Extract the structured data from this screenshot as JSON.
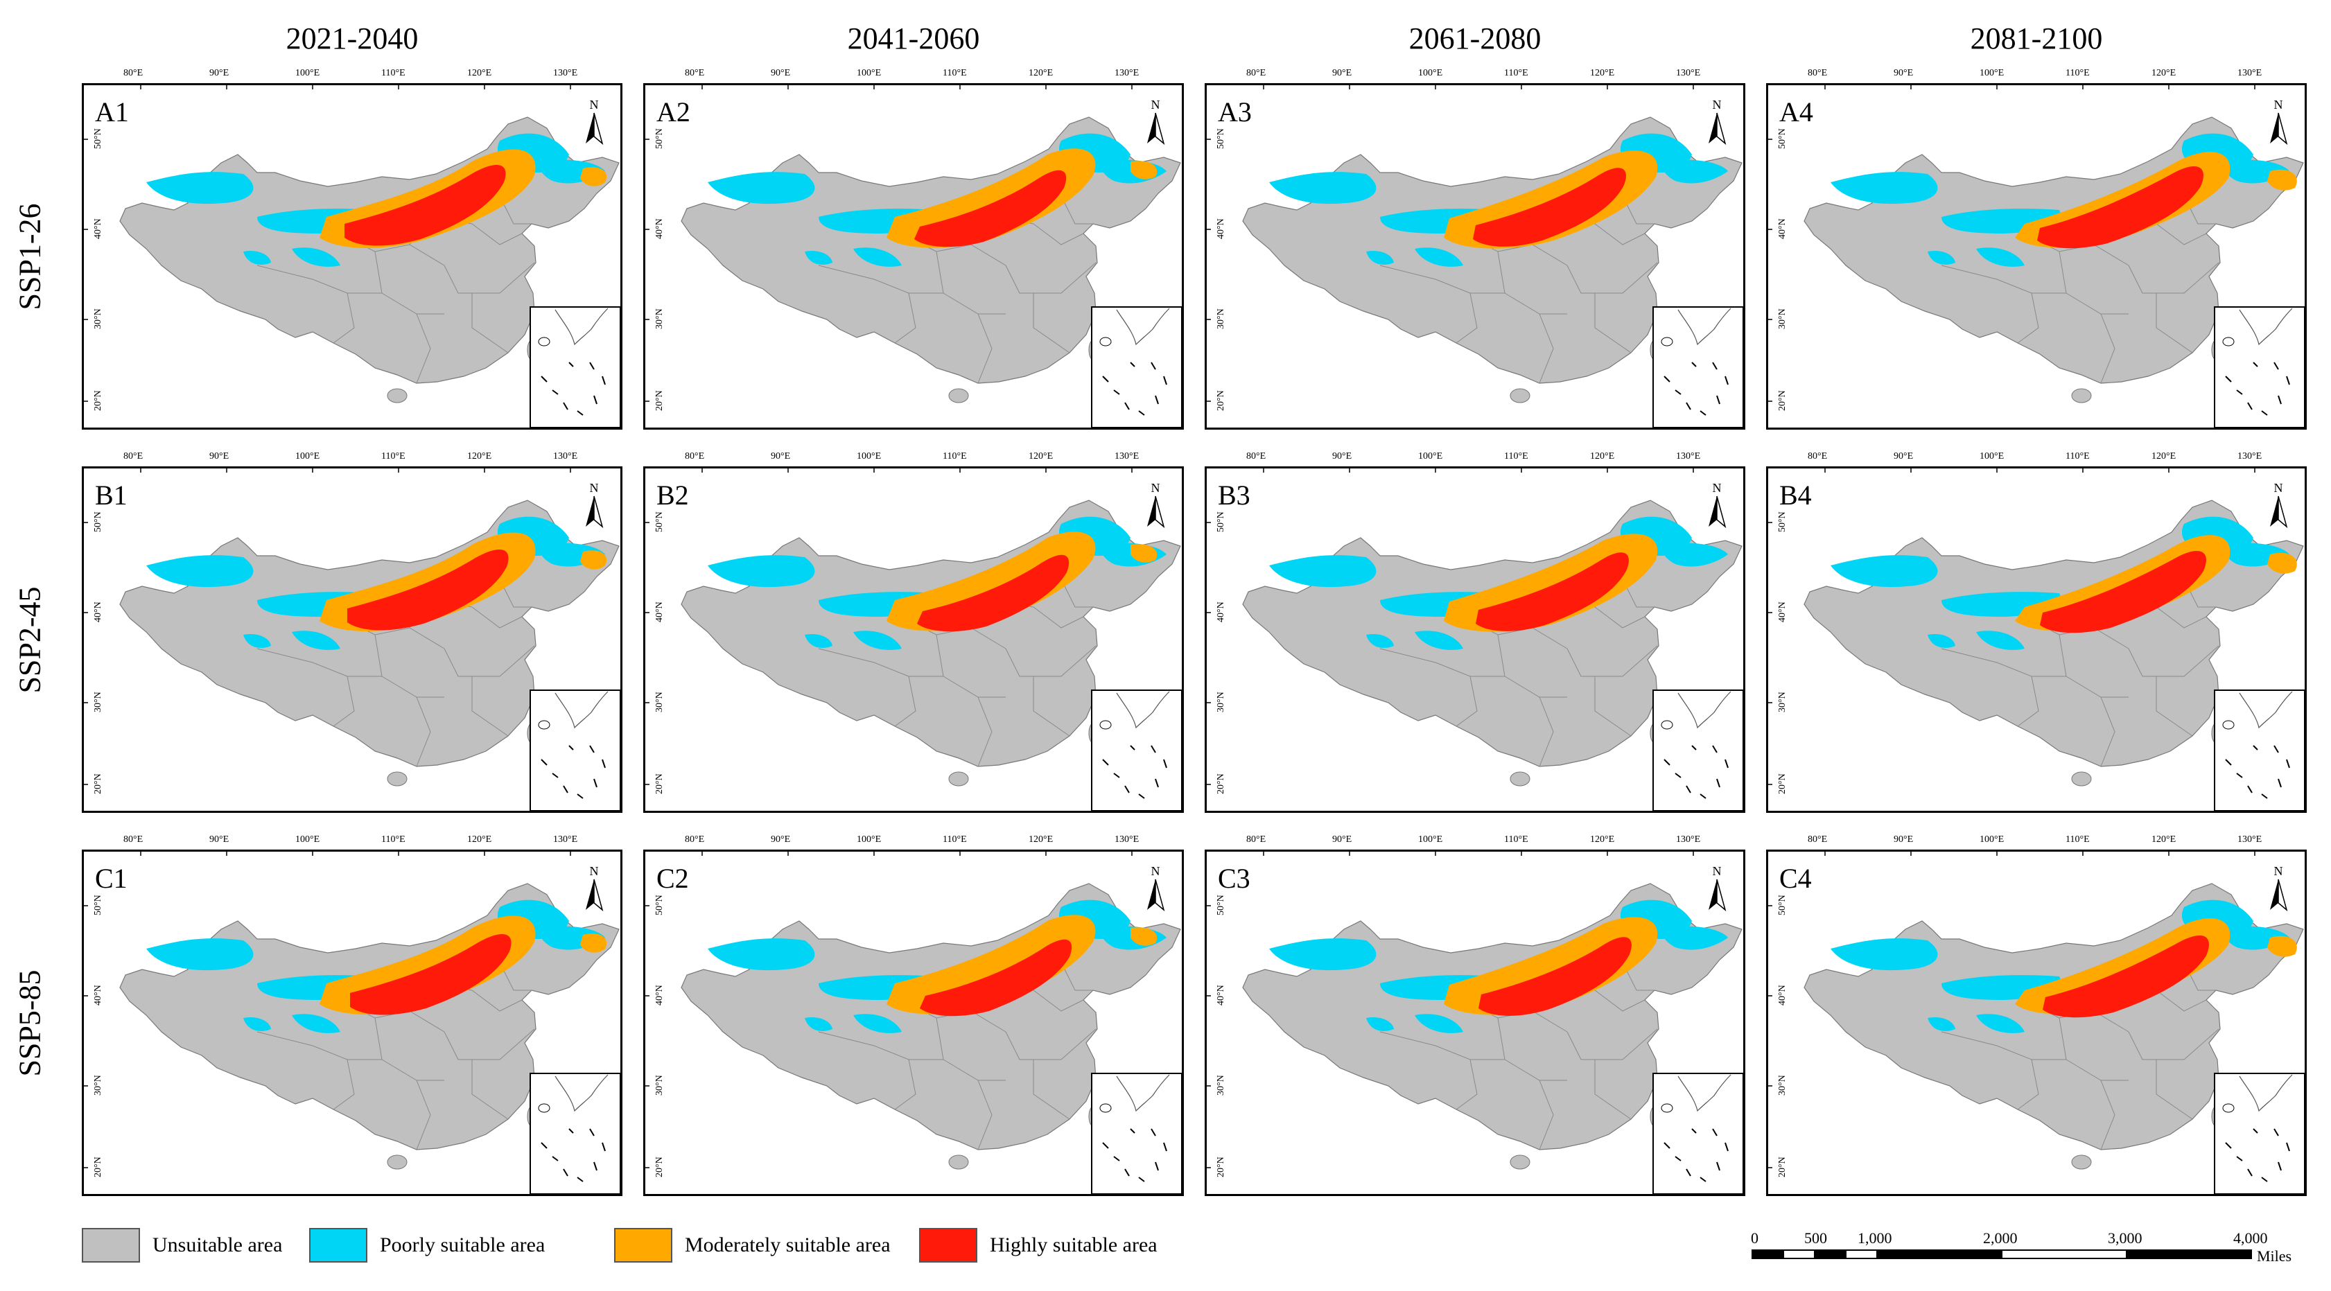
{
  "figure": {
    "columns": [
      "2021-2040",
      "2041-2060",
      "2061-2080",
      "2081-2100"
    ],
    "rows": [
      "SSP1-26",
      "SSP2-45",
      "SSP5-85"
    ],
    "panels": [
      [
        "A1",
        "A2",
        "A3",
        "A4"
      ],
      [
        "B1",
        "B2",
        "B3",
        "B4"
      ],
      [
        "C1",
        "C2",
        "C3",
        "C4"
      ]
    ],
    "lon_ticks": [
      "80°E",
      "90°E",
      "100°E",
      "110°E",
      "120°E",
      "130°E"
    ],
    "lat_ticks": [
      "50°N",
      "40°N",
      "30°N",
      "20°N"
    ],
    "north_label": "N"
  },
  "legend": {
    "items": [
      {
        "label": "Unsuitable area",
        "color": "#c0c0c0"
      },
      {
        "label": "Poorly suitable area",
        "color": "#00d5f5"
      },
      {
        "label": "Moderately suitable area",
        "color": "#ffa800"
      },
      {
        "label": "Highly suitable area",
        "color": "#ff1a0a"
      }
    ]
  },
  "scale_bar": {
    "ticks": [
      "0",
      "500",
      "1,000",
      "2,000",
      "3,000",
      "4,000"
    ],
    "unit": "Miles"
  }
}
